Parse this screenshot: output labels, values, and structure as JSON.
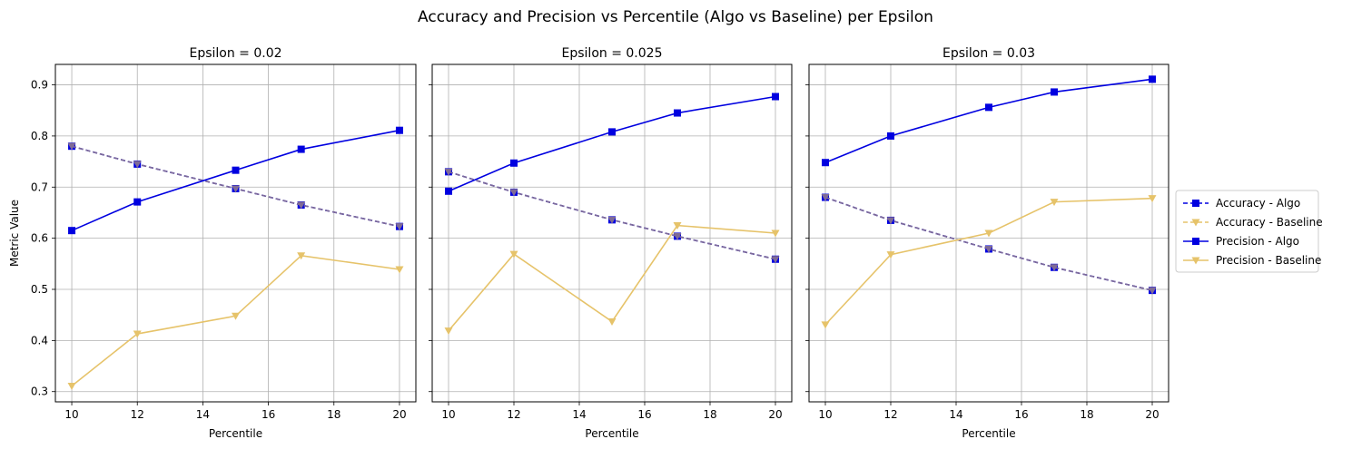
{
  "suptitle": "Accuracy and Precision vs Percentile (Algo vs Baseline) per Epsilon",
  "colors": {
    "algo": "#0000e0",
    "baseline": "#e6c36a",
    "accuracy_overlap": "#7f6b96",
    "grid": "#b0b0b0"
  },
  "legend": {
    "placement": "right-outside",
    "items": [
      {
        "label": "Accuracy - Algo",
        "series": "acc_algo"
      },
      {
        "label": "Accuracy - Baseline",
        "series": "acc_base"
      },
      {
        "label": "Precision - Algo",
        "series": "prec_algo"
      },
      {
        "label": "Precision - Baseline",
        "series": "prec_base"
      }
    ]
  },
  "chart_data": [
    {
      "type": "line",
      "title": "Epsilon = 0.02",
      "xlabel": "Percentile",
      "ylabel": "Metric Value",
      "x": [
        10,
        12,
        15,
        17,
        20
      ],
      "xticks": [
        10,
        12,
        14,
        16,
        18,
        20
      ],
      "yticks": [
        0.3,
        0.4,
        0.5,
        0.6,
        0.7,
        0.8,
        0.9
      ],
      "xlim": [
        9.5,
        20.5
      ],
      "ylim": [
        0.28,
        0.94
      ],
      "grid": true,
      "series": [
        {
          "name": "Accuracy - Algo",
          "key": "acc_algo",
          "values": [
            0.78,
            0.745,
            0.697,
            0.665,
            0.623
          ]
        },
        {
          "name": "Accuracy - Baseline",
          "key": "acc_base",
          "values": [
            0.78,
            0.745,
            0.697,
            0.665,
            0.623
          ]
        },
        {
          "name": "Precision - Algo",
          "key": "prec_algo",
          "values": [
            0.615,
            0.671,
            0.733,
            0.774,
            0.811
          ]
        },
        {
          "name": "Precision - Baseline",
          "key": "prec_base",
          "values": [
            0.311,
            0.413,
            0.448,
            0.566,
            0.539
          ]
        }
      ]
    },
    {
      "type": "line",
      "title": "Epsilon = 0.025",
      "xlabel": "Percentile",
      "ylabel": "",
      "x": [
        10,
        12,
        15,
        17,
        20
      ],
      "xticks": [
        10,
        12,
        14,
        16,
        18,
        20
      ],
      "yticks": [
        0.3,
        0.4,
        0.5,
        0.6,
        0.7,
        0.8,
        0.9
      ],
      "xlim": [
        9.5,
        20.5
      ],
      "ylim": [
        0.28,
        0.94
      ],
      "grid": true,
      "series": [
        {
          "name": "Accuracy - Algo",
          "key": "acc_algo",
          "values": [
            0.73,
            0.69,
            0.636,
            0.604,
            0.559
          ]
        },
        {
          "name": "Accuracy - Baseline",
          "key": "acc_base",
          "values": [
            0.73,
            0.69,
            0.636,
            0.604,
            0.559
          ]
        },
        {
          "name": "Precision - Algo",
          "key": "prec_algo",
          "values": [
            0.692,
            0.747,
            0.808,
            0.845,
            0.877
          ]
        },
        {
          "name": "Precision - Baseline",
          "key": "prec_base",
          "values": [
            0.419,
            0.569,
            0.437,
            0.625,
            0.61
          ]
        }
      ]
    },
    {
      "type": "line",
      "title": "Epsilon = 0.03",
      "xlabel": "Percentile",
      "ylabel": "",
      "x": [
        10,
        12,
        15,
        17,
        20
      ],
      "xticks": [
        10,
        12,
        14,
        16,
        18,
        20
      ],
      "yticks": [
        0.3,
        0.4,
        0.5,
        0.6,
        0.7,
        0.8,
        0.9
      ],
      "xlim": [
        9.5,
        20.5
      ],
      "ylim": [
        0.28,
        0.94
      ],
      "grid": true,
      "series": [
        {
          "name": "Accuracy - Algo",
          "key": "acc_algo",
          "values": [
            0.68,
            0.635,
            0.579,
            0.543,
            0.498
          ]
        },
        {
          "name": "Accuracy - Baseline",
          "key": "acc_base",
          "values": [
            0.68,
            0.635,
            0.579,
            0.543,
            0.498
          ]
        },
        {
          "name": "Precision - Algo",
          "key": "prec_algo",
          "values": [
            0.748,
            0.8,
            0.856,
            0.886,
            0.911
          ]
        },
        {
          "name": "Precision - Baseline",
          "key": "prec_base",
          "values": [
            0.431,
            0.568,
            0.61,
            0.671,
            0.678
          ]
        }
      ]
    }
  ]
}
